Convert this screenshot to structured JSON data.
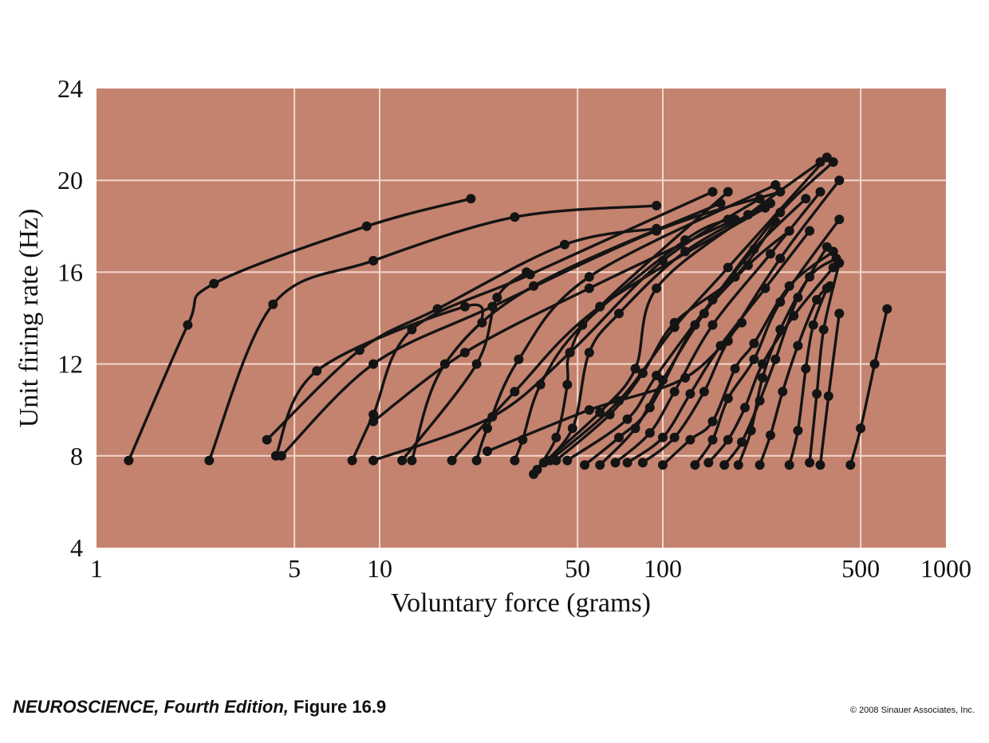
{
  "caption": {
    "book": "NEUROSCIENCE, Fourth Edition,",
    "figure": "Figure 16.9",
    "copyright": "© 2008 Sinauer Associates, Inc."
  },
  "colors": {
    "plot_background": "#c4836f",
    "grid": "#f2d8cc",
    "series": "#141414"
  },
  "chart_data": {
    "type": "line",
    "xscale": "log",
    "xlabel": "Voluntary force (grams)",
    "ylabel": "Unit firing rate (Hz)",
    "xlim": [
      1,
      1000
    ],
    "ylim": [
      4,
      24
    ],
    "xticks": [
      1,
      5,
      10,
      50,
      100,
      500,
      1000
    ],
    "xtick_labels": [
      "1",
      "5",
      "10",
      "50",
      "100",
      "500",
      "1000"
    ],
    "yticks": [
      4,
      8,
      12,
      16,
      20,
      24
    ],
    "ytick_labels": [
      "4",
      "8",
      "12",
      "16",
      "20",
      "24"
    ],
    "grid": true,
    "markers": true,
    "series": [
      {
        "points": [
          [
            1.3,
            7.8
          ],
          [
            2.1,
            13.7
          ],
          [
            2.6,
            15.5
          ],
          [
            9,
            18
          ],
          [
            21,
            19.2
          ]
        ]
      },
      {
        "points": [
          [
            2.5,
            7.8
          ],
          [
            4.2,
            14.6
          ],
          [
            9.5,
            16.5
          ],
          [
            30,
            18.4
          ],
          [
            95,
            18.9
          ]
        ]
      },
      {
        "points": [
          [
            4,
            8.7
          ],
          [
            8.5,
            12.6
          ],
          [
            16,
            14.4
          ],
          [
            45,
            17.2
          ],
          [
            95,
            17.9
          ]
        ]
      },
      {
        "points": [
          [
            4.3,
            8
          ],
          [
            6,
            11.7
          ],
          [
            20,
            14.5
          ],
          [
            23,
            13.8
          ]
        ]
      },
      {
        "points": [
          [
            4.5,
            8
          ],
          [
            9.5,
            12
          ],
          [
            25,
            14.5
          ],
          [
            95,
            17.8
          ],
          [
            260,
            19.5
          ]
        ]
      },
      {
        "points": [
          [
            8,
            7.8
          ],
          [
            9.5,
            9.8
          ],
          [
            13,
            13.5
          ],
          [
            34,
            15.9
          ],
          [
            150,
            19.5
          ]
        ]
      },
      {
        "points": [
          [
            9.5,
            9.5
          ],
          [
            20,
            12.5
          ],
          [
            55,
            15.3
          ],
          [
            180,
            18.3
          ]
        ]
      },
      {
        "points": [
          [
            9.5,
            7.8
          ],
          [
            25,
            9.7
          ],
          [
            47,
            12.5
          ],
          [
            100,
            16.5
          ],
          [
            220,
            19.2
          ]
        ]
      },
      {
        "points": [
          [
            13,
            7.8
          ],
          [
            17,
            12
          ],
          [
            35,
            15.4
          ],
          [
            160,
            19
          ]
        ]
      },
      {
        "points": [
          [
            12,
            7.8
          ],
          [
            22,
            12
          ],
          [
            26,
            14.9
          ],
          [
            33,
            16
          ]
        ]
      },
      {
        "points": [
          [
            18,
            7.8
          ],
          [
            30,
            10.8
          ],
          [
            60,
            14.5
          ],
          [
            230,
            18.8
          ]
        ]
      },
      {
        "points": [
          [
            22,
            7.8
          ],
          [
            24,
            9.2
          ],
          [
            31,
            12.2
          ],
          [
            55,
            15.8
          ],
          [
            250,
            19.8
          ]
        ]
      },
      {
        "points": [
          [
            24,
            8.2
          ],
          [
            55,
            10
          ],
          [
            120,
            11.4
          ],
          [
            190,
            13.8
          ]
        ]
      },
      {
        "points": [
          [
            30,
            7.8
          ],
          [
            32,
            8.7
          ],
          [
            37,
            11.1
          ],
          [
            52,
            13.7
          ],
          [
            120,
            17.4
          ],
          [
            170,
            18.3
          ]
        ]
      },
      {
        "points": [
          [
            35,
            7.2
          ],
          [
            42,
            8.8
          ],
          [
            46,
            11.1
          ],
          [
            47,
            12.5
          ],
          [
            60,
            14.5
          ],
          [
            170,
            19.5
          ]
        ]
      },
      {
        "points": [
          [
            36,
            7.4
          ],
          [
            48,
            9.2
          ],
          [
            55,
            12.5
          ],
          [
            70,
            14.2
          ],
          [
            120,
            16.9
          ],
          [
            240,
            19
          ]
        ]
      },
      {
        "points": [
          [
            38,
            7.7
          ],
          [
            60,
            9.9
          ],
          [
            80,
            11.8
          ],
          [
            95,
            15.3
          ],
          [
            200,
            18.5
          ],
          [
            360,
            20.8
          ]
        ]
      },
      {
        "points": [
          [
            40,
            7.8
          ],
          [
            70,
            10.4
          ],
          [
            110,
            13.6
          ],
          [
            170,
            16.2
          ],
          [
            380,
            21
          ]
        ]
      },
      {
        "points": [
          [
            42,
            7.8
          ],
          [
            65,
            9.8
          ],
          [
            85,
            11.6
          ],
          [
            110,
            13.8
          ],
          [
            180,
            15.8
          ],
          [
            250,
            18.2
          ]
        ]
      },
      {
        "points": [
          [
            46,
            7.8
          ],
          [
            75,
            9.6
          ],
          [
            95,
            11.5
          ],
          [
            150,
            14.8
          ],
          [
            260,
            18.6
          ],
          [
            400,
            20.8
          ]
        ]
      },
      {
        "points": [
          [
            53,
            7.6
          ],
          [
            70,
            8.8
          ],
          [
            90,
            10.1
          ],
          [
            130,
            13.7
          ],
          [
            200,
            16.3
          ],
          [
            280,
            17.8
          ]
        ]
      },
      {
        "points": [
          [
            60,
            7.6
          ],
          [
            80,
            9.2
          ],
          [
            100,
            11.3
          ],
          [
            140,
            14.2
          ],
          [
            210,
            17
          ],
          [
            320,
            19.2
          ]
        ]
      },
      {
        "points": [
          [
            68,
            7.7
          ],
          [
            90,
            9
          ],
          [
            110,
            10.8
          ],
          [
            150,
            13.7
          ],
          [
            240,
            16.8
          ],
          [
            360,
            19.5
          ]
        ]
      },
      {
        "points": [
          [
            75,
            7.7
          ],
          [
            100,
            8.8
          ],
          [
            125,
            10.7
          ],
          [
            160,
            12.8
          ],
          [
            230,
            15.3
          ],
          [
            330,
            17.8
          ]
        ]
      },
      {
        "points": [
          [
            85,
            7.7
          ],
          [
            110,
            8.8
          ],
          [
            140,
            10.8
          ],
          [
            170,
            13
          ],
          [
            260,
            16.6
          ],
          [
            420,
            20
          ]
        ]
      },
      {
        "points": [
          [
            100,
            7.6
          ],
          [
            125,
            8.7
          ],
          [
            150,
            9.5
          ],
          [
            180,
            11.8
          ],
          [
            210,
            12.9
          ],
          [
            280,
            15.4
          ],
          [
            400,
            16.9
          ]
        ]
      },
      {
        "points": [
          [
            130,
            7.6
          ],
          [
            150,
            8.7
          ],
          [
            170,
            10.5
          ],
          [
            210,
            12.2
          ],
          [
            260,
            14.7
          ],
          [
            420,
            18.3
          ]
        ]
      },
      {
        "points": [
          [
            145,
            7.7
          ],
          [
            170,
            8.7
          ],
          [
            195,
            10.1
          ],
          [
            225,
            12
          ],
          [
            290,
            14.1
          ],
          [
            400,
            16.2
          ]
        ]
      },
      {
        "points": [
          [
            165,
            7.6
          ],
          [
            190,
            8.6
          ],
          [
            220,
            10.4
          ],
          [
            250,
            12.2
          ],
          [
            300,
            14.9
          ],
          [
            380,
            17.1
          ]
        ]
      },
      {
        "points": [
          [
            185,
            7.6
          ],
          [
            205,
            9.1
          ],
          [
            225,
            11.4
          ],
          [
            260,
            13.5
          ],
          [
            330,
            15.8
          ],
          [
            410,
            16.6
          ]
        ]
      },
      {
        "points": [
          [
            220,
            7.6
          ],
          [
            240,
            8.9
          ],
          [
            265,
            10.8
          ],
          [
            300,
            12.8
          ],
          [
            350,
            14.8
          ],
          [
            390,
            15.4
          ]
        ]
      },
      {
        "points": [
          [
            280,
            7.6
          ],
          [
            300,
            9.1
          ],
          [
            320,
            11.8
          ],
          [
            340,
            13.7
          ],
          [
            380,
            15.3
          ]
        ]
      },
      {
        "points": [
          [
            330,
            7.7
          ],
          [
            350,
            10.7
          ],
          [
            370,
            13.5
          ],
          [
            420,
            16.4
          ]
        ]
      },
      {
        "points": [
          [
            360,
            7.6
          ],
          [
            385,
            10.6
          ],
          [
            420,
            14.2
          ]
        ]
      },
      {
        "points": [
          [
            460,
            7.6
          ],
          [
            500,
            9.2
          ],
          [
            560,
            12
          ],
          [
            620,
            14.4
          ]
        ]
      }
    ]
  }
}
